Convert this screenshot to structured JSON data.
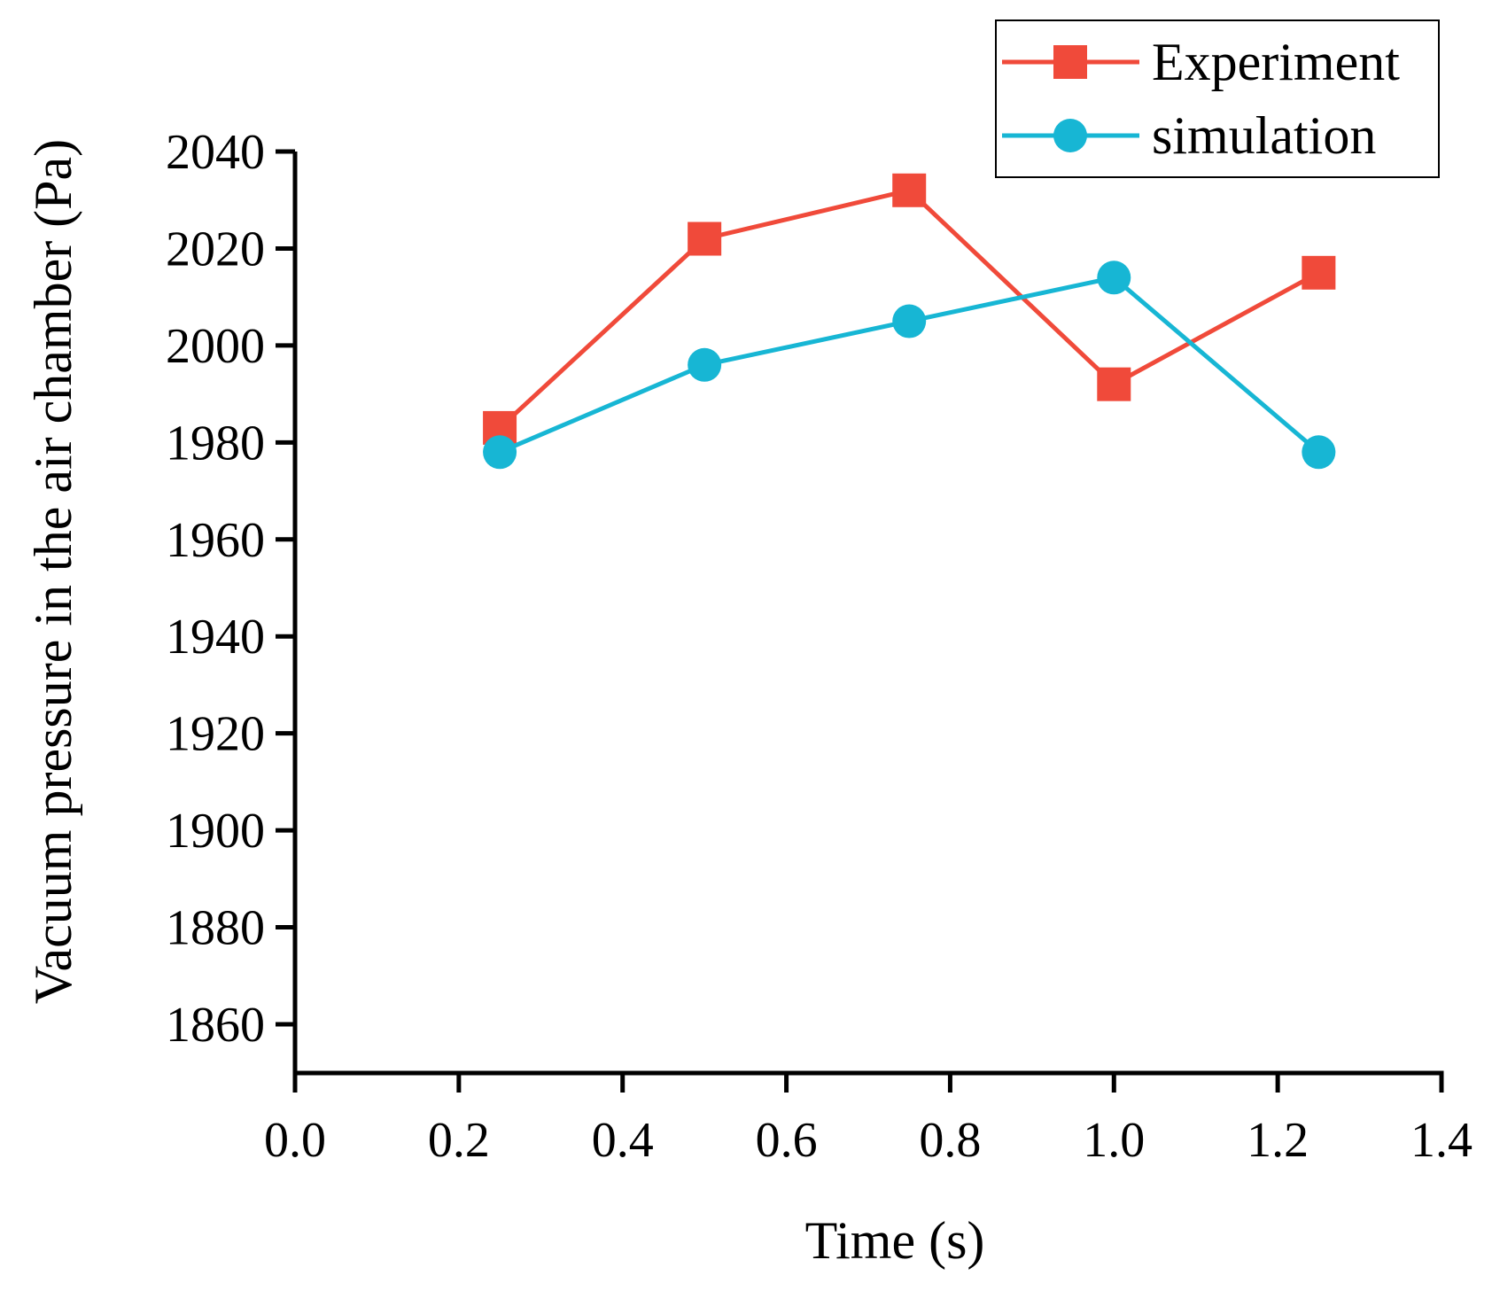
{
  "chart_data": {
    "type": "line",
    "title": "",
    "xlabel": "Time (s)",
    "ylabel": "Vacuum pressure in the air chamber (Pa)",
    "xlim": [
      0.0,
      1.4
    ],
    "ylim": [
      1850,
      2040
    ],
    "x_ticks": [
      "0.0",
      "0.2",
      "0.4",
      "0.6",
      "0.8",
      "1.0",
      "1.2",
      "1.4"
    ],
    "y_ticks": [
      "1860",
      "1880",
      "1900",
      "1920",
      "1940",
      "1960",
      "1980",
      "2000",
      "2020",
      "2040"
    ],
    "x_tick_values": [
      0.0,
      0.2,
      0.4,
      0.6,
      0.8,
      1.0,
      1.2,
      1.4
    ],
    "y_tick_values": [
      1860,
      1880,
      1900,
      1920,
      1940,
      1960,
      1980,
      2000,
      2020,
      2040
    ],
    "grid": false,
    "legend_position": "top-right",
    "series": [
      {
        "name": "Experiment",
        "marker": "square",
        "color": "#f04a3a",
        "x": [
          0.25,
          0.5,
          0.75,
          1.0,
          1.25
        ],
        "y": [
          1983,
          2022,
          2032,
          1992,
          2015
        ]
      },
      {
        "name": "simulation",
        "marker": "circle",
        "color": "#17b6d4",
        "x": [
          0.25,
          0.5,
          0.75,
          1.0,
          1.25
        ],
        "y": [
          1978,
          1996,
          2005,
          2014,
          1978
        ]
      }
    ]
  }
}
